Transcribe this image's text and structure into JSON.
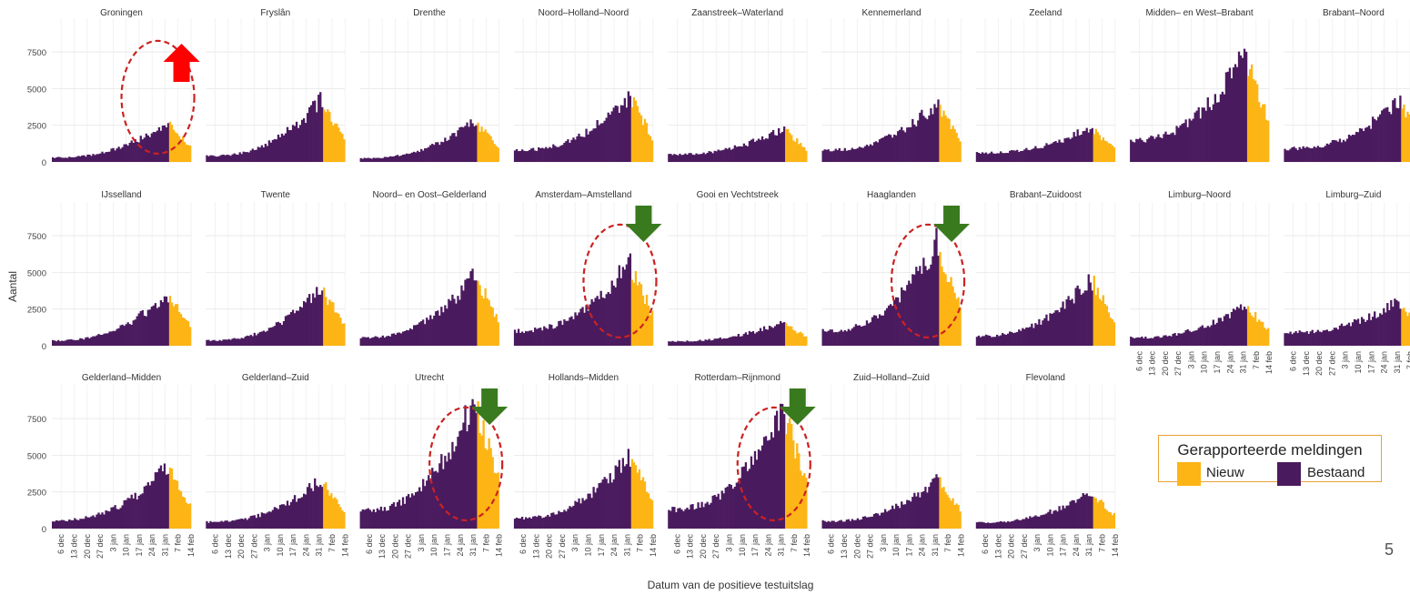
{
  "chart_data": {
    "type": "bar",
    "stacked": true,
    "grid": true,
    "ylabel": "Aantal",
    "xlabel": "Datum van de positieve testuitslag",
    "y_ticks": [
      0,
      2500,
      5000,
      7500
    ],
    "ylim": [
      0,
      9800
    ],
    "x_ticks": [
      "6 dec",
      "13 dec",
      "20 dec",
      "27 dec",
      "3 jan",
      "10 jan",
      "17 jan",
      "24 jan",
      "31 jan",
      "7 feb",
      "14 feb"
    ],
    "x_range": [
      "2020-12-01",
      "2021-02-14"
    ],
    "new_from": "2021-02-03",
    "colors": {
      "Bestaand": "#4a1a5e",
      "Nieuw": "#fdb515",
      "arrow_up": "#ff0000",
      "arrow_down": "#3a7a1e",
      "circle": "#cc2222"
    },
    "legend": {
      "title": "Gerapporteerde meldingen",
      "position": "bottom-right",
      "items": [
        {
          "label": "Nieuw",
          "color": "#fdb515"
        },
        {
          "label": "Bestaand",
          "color": "#4a1a5e"
        }
      ]
    },
    "panels": [
      {
        "name": "Groningen",
        "base": 300,
        "peak": 2700,
        "annotation": "arrow-up"
      },
      {
        "name": "Fryslân",
        "base": 400,
        "peak": 4200
      },
      {
        "name": "Drenthe",
        "base": 250,
        "peak": 2800
      },
      {
        "name": "Noord–Holland–Noord",
        "base": 800,
        "peak": 4500
      },
      {
        "name": "Zaanstreek–Waterland",
        "base": 500,
        "peak": 2300
      },
      {
        "name": "Kennemerland",
        "base": 800,
        "peak": 4000
      },
      {
        "name": "Zeeland",
        "base": 600,
        "peak": 2400
      },
      {
        "name": "Midden– en West–Brabant",
        "base": 1500,
        "peak": 7500
      },
      {
        "name": "Brabant–Noord",
        "base": 900,
        "peak": 4200
      },
      {
        "name": "IJsselland",
        "base": 350,
        "peak": 3500
      },
      {
        "name": "Twente",
        "base": 350,
        "peak": 3900
      },
      {
        "name": "Noord– en Oost–Gelderland",
        "base": 550,
        "peak": 4800
      },
      {
        "name": "Amsterdam–Amstelland",
        "base": 1000,
        "peak": 5800,
        "annotation": "arrow-down"
      },
      {
        "name": "Gooi en Vechtstreek",
        "base": 300,
        "peak": 1600
      },
      {
        "name": "Haaglanden",
        "base": 1000,
        "peak": 7000,
        "annotation": "arrow-down"
      },
      {
        "name": "Brabant–Zuidoost",
        "base": 650,
        "peak": 4600
      },
      {
        "name": "Limburg–Noord",
        "base": 550,
        "peak": 2800
      },
      {
        "name": "Limburg–Zuid",
        "base": 900,
        "peak": 3100
      },
      {
        "name": "Gelderland–Midden",
        "base": 550,
        "peak": 4200
      },
      {
        "name": "Gelderland–Zuid",
        "base": 450,
        "peak": 3400
      },
      {
        "name": "Utrecht",
        "base": 1200,
        "peak": 8800,
        "annotation": "arrow-down"
      },
      {
        "name": "Hollands–Midden",
        "base": 700,
        "peak": 5000
      },
      {
        "name": "Rotterdam–Rijnmond",
        "base": 1300,
        "peak": 8200,
        "annotation": "arrow-down"
      },
      {
        "name": "Zuid–Holland–Zuid",
        "base": 500,
        "peak": 3400
      },
      {
        "name": "Flevoland",
        "base": 400,
        "peak": 2500
      }
    ]
  },
  "page_number": "5"
}
